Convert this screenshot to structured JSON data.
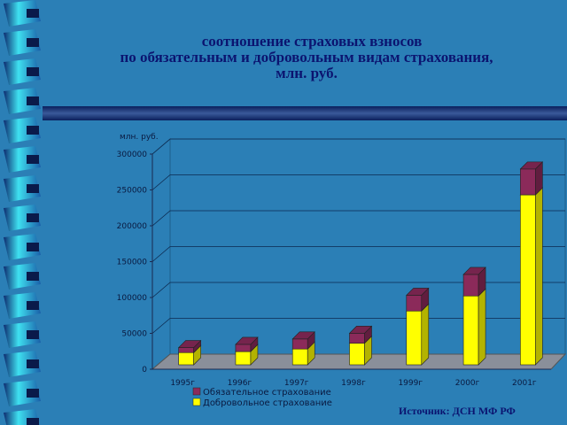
{
  "chart_data": {
    "type": "bar3d_stacked",
    "title": [
      "соотношение  страховых  взносов",
      "по обязательным и добровольным видам страхования,",
      "млн. руб."
    ],
    "y_label": "млн. руб.",
    "source": "Источник:  ДСН МФ  РФ",
    "categories": [
      "1995г",
      "1996г",
      "1997г",
      "1998г",
      "1999г",
      "2000г",
      "2001г"
    ],
    "series": [
      {
        "name": "Обязательное страхование",
        "color": "#8b2a5a",
        "values": [
          7000,
          10000,
          14000,
          14000,
          22000,
          30000,
          36000
        ]
      },
      {
        "name": "Добровольное страхование",
        "color": "#ffff00",
        "values": [
          17000,
          18500,
          22000,
          30000,
          75000,
          96000,
          237000
        ]
      }
    ],
    "ylim": [
      0,
      300000
    ],
    "yticks": [
      0,
      50000,
      100000,
      150000,
      200000,
      250000,
      300000
    ],
    "grid": true
  }
}
